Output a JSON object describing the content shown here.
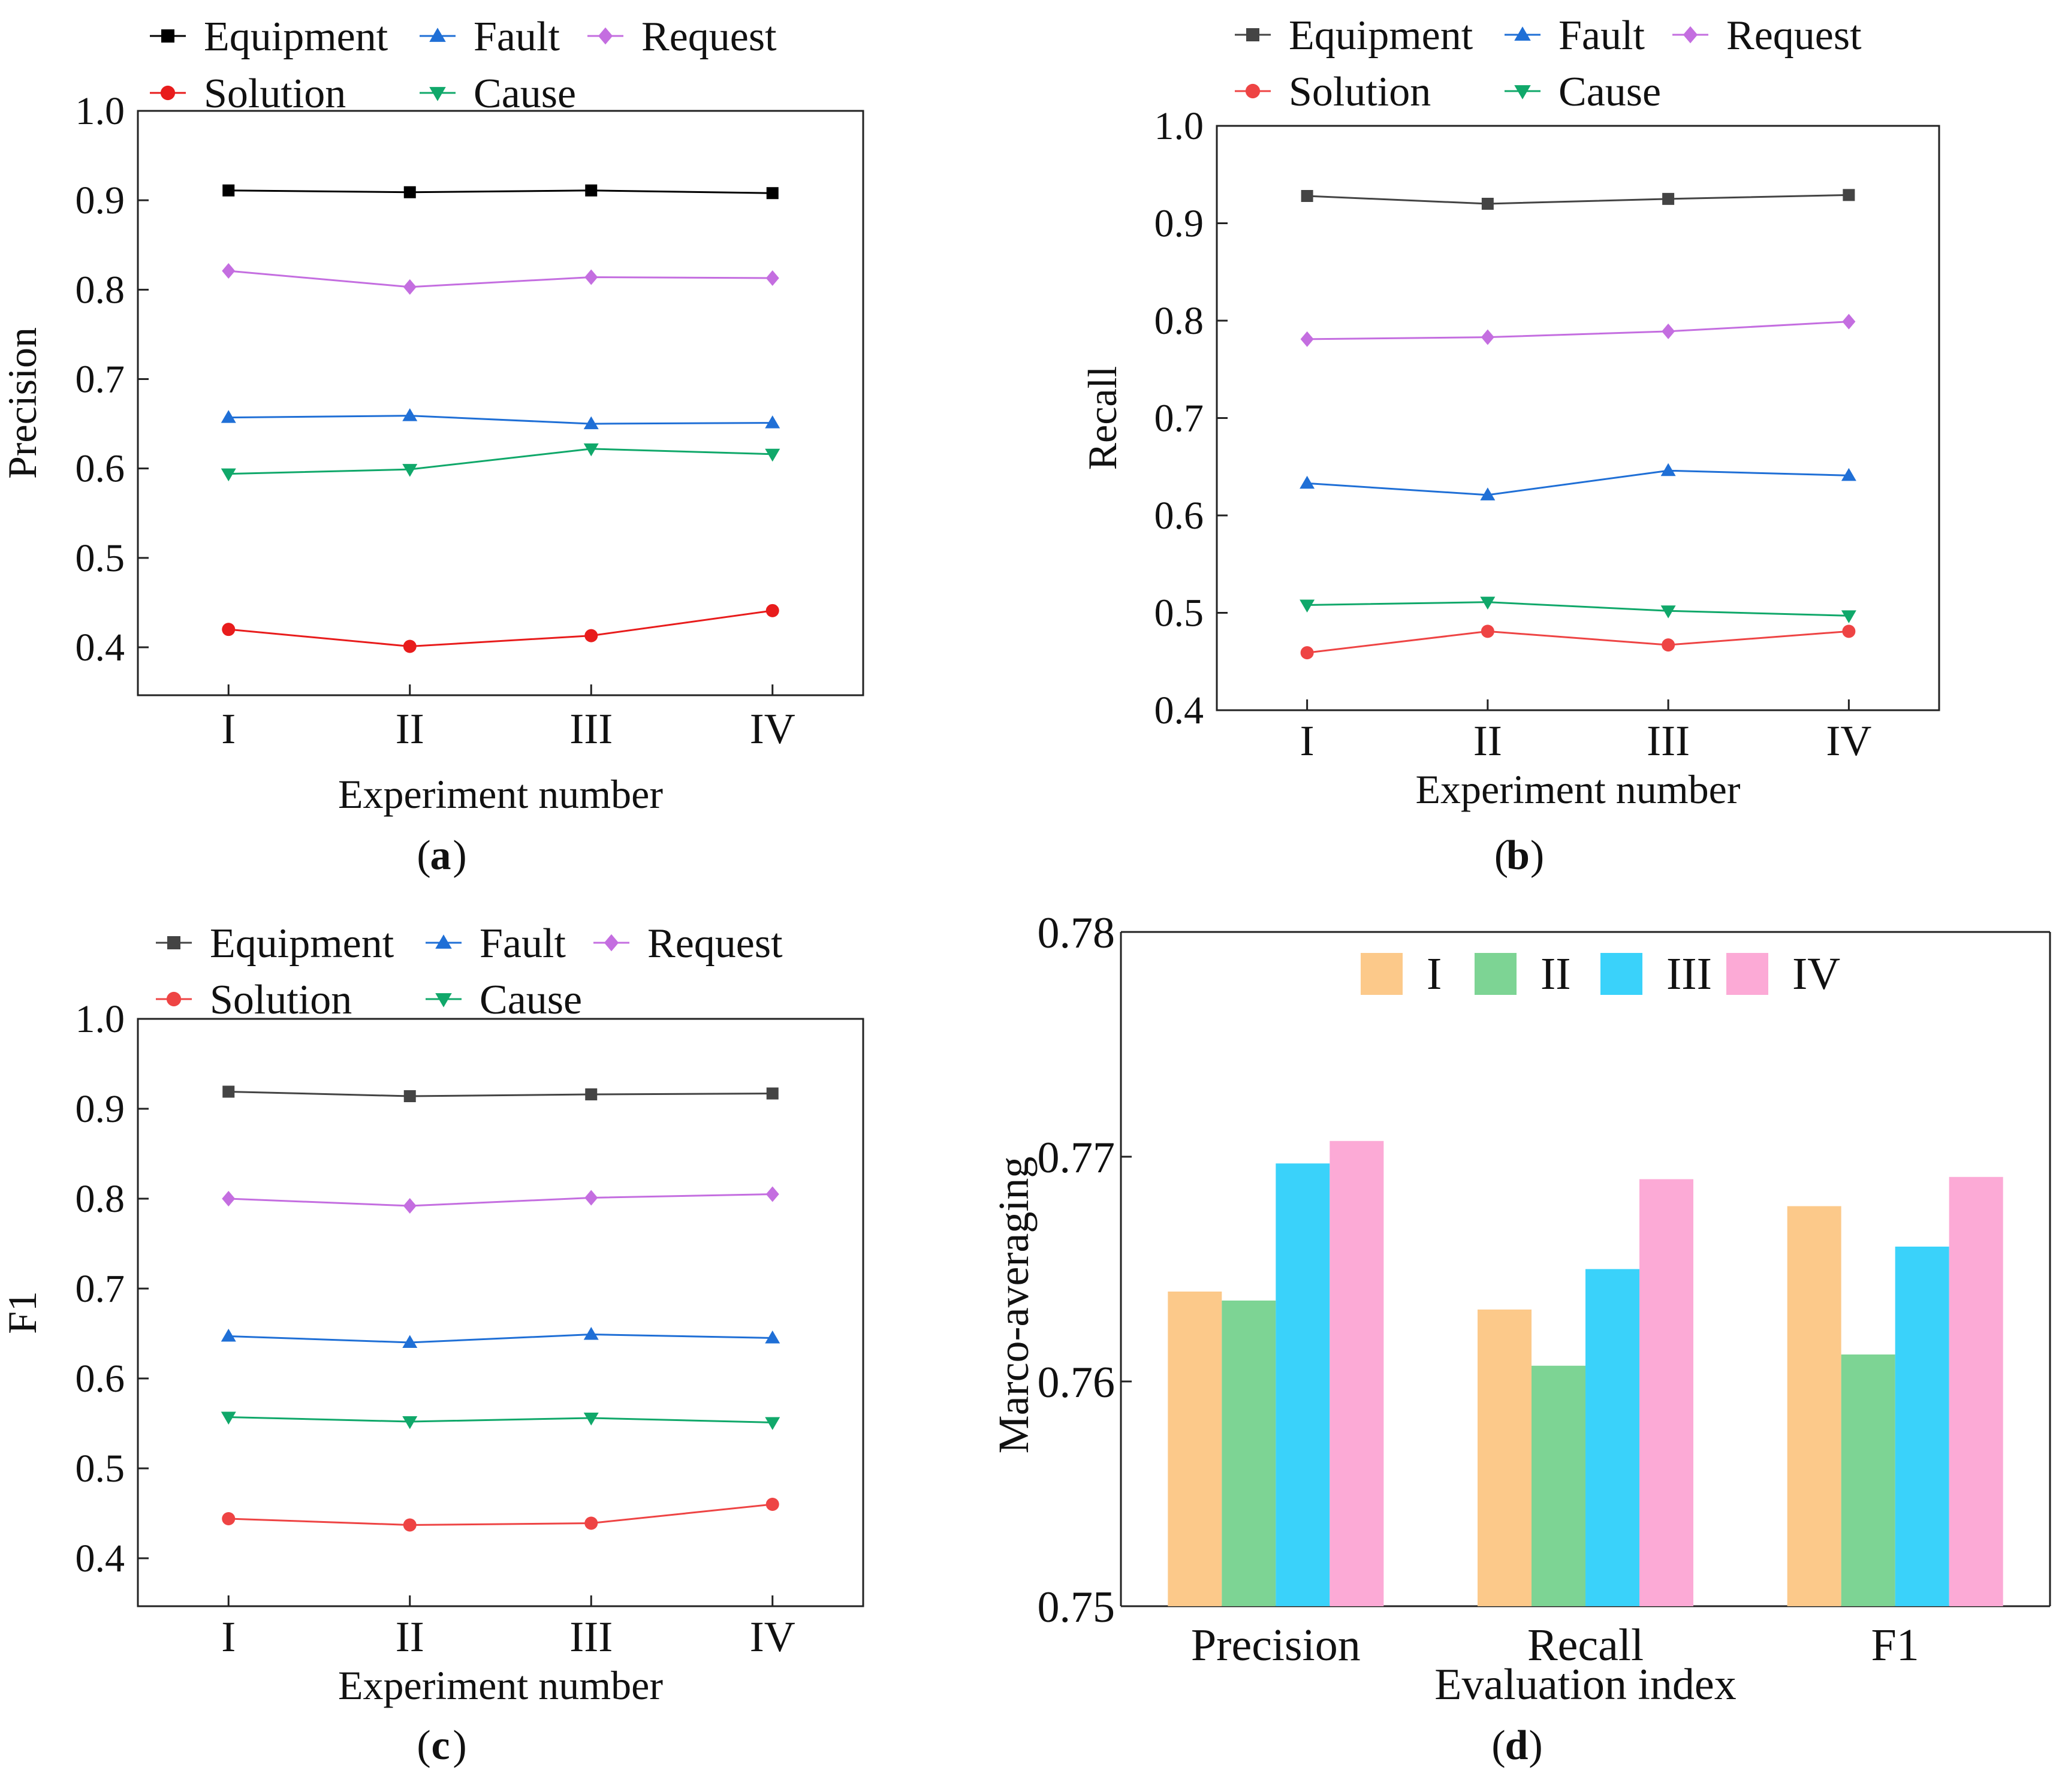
{
  "chart_data": [
    {
      "type": "line",
      "panel_label": "a",
      "xlabel": "Experiment number",
      "ylabel": "Precision",
      "categories": [
        "I",
        "II",
        "III",
        "IV"
      ],
      "ylim": [
        0.35,
        1.0
      ],
      "yticks": [
        "0.4",
        "0.5",
        "0.6",
        "0.7",
        "0.8",
        "0.9",
        "1.0"
      ],
      "legend_position": "top",
      "series": [
        {
          "name": "Equipment",
          "color": "#000000",
          "marker": "square",
          "values": [
            0.911,
            0.909,
            0.911,
            0.908
          ]
        },
        {
          "name": "Fault",
          "color": "#1f6fd6",
          "marker": "triangle-up",
          "values": [
            0.657,
            0.659,
            0.65,
            0.651
          ]
        },
        {
          "name": "Request",
          "color": "#c46ee0",
          "marker": "diamond",
          "values": [
            0.821,
            0.803,
            0.814,
            0.813
          ]
        },
        {
          "name": "Solution",
          "color": "#e81c1c",
          "marker": "circle",
          "values": [
            0.42,
            0.401,
            0.413,
            0.441
          ]
        },
        {
          "name": "Cause",
          "color": "#10a86a",
          "marker": "triangle-down",
          "values": [
            0.594,
            0.599,
            0.622,
            0.616
          ]
        }
      ]
    },
    {
      "type": "line",
      "panel_label": "b",
      "xlabel": "Experiment number",
      "ylabel": "Recall",
      "categories": [
        "I",
        "II",
        "III",
        "IV"
      ],
      "ylim": [
        0.4,
        1.0
      ],
      "yticks": [
        "0.4",
        "0.5",
        "0.6",
        "0.7",
        "0.8",
        "0.9",
        "1.0"
      ],
      "legend_position": "top",
      "series": [
        {
          "name": "Equipment",
          "color": "#444444",
          "marker": "square",
          "values": [
            0.928,
            0.92,
            0.925,
            0.929
          ]
        },
        {
          "name": "Fault",
          "color": "#1f6fd6",
          "marker": "triangle-up",
          "values": [
            0.633,
            0.621,
            0.646,
            0.641
          ]
        },
        {
          "name": "Request",
          "color": "#c46ee0",
          "marker": "diamond",
          "values": [
            0.781,
            0.783,
            0.789,
            0.799
          ]
        },
        {
          "name": "Solution",
          "color": "#ee4444",
          "marker": "circle",
          "values": [
            0.459,
            0.481,
            0.467,
            0.481
          ]
        },
        {
          "name": "Cause",
          "color": "#10a86a",
          "marker": "triangle-down",
          "values": [
            0.508,
            0.511,
            0.502,
            0.497
          ]
        }
      ]
    },
    {
      "type": "line",
      "panel_label": "c",
      "xlabel": "Experiment number",
      "ylabel": "F1",
      "categories": [
        "I",
        "II",
        "III",
        "IV"
      ],
      "ylim": [
        0.35,
        1.0
      ],
      "yticks": [
        "0.4",
        "0.5",
        "0.6",
        "0.7",
        "0.8",
        "0.9",
        "1.0"
      ],
      "legend_position": "top",
      "series": [
        {
          "name": "Equipment",
          "color": "#444444",
          "marker": "square",
          "values": [
            0.919,
            0.914,
            0.916,
            0.917
          ]
        },
        {
          "name": "Fault",
          "color": "#1f6fd6",
          "marker": "triangle-up",
          "values": [
            0.647,
            0.64,
            0.649,
            0.645
          ]
        },
        {
          "name": "Request",
          "color": "#c46ee0",
          "marker": "diamond",
          "values": [
            0.8,
            0.792,
            0.801,
            0.805
          ]
        },
        {
          "name": "Solution",
          "color": "#ee4444",
          "marker": "circle",
          "values": [
            0.444,
            0.437,
            0.439,
            0.46
          ]
        },
        {
          "name": "Cause",
          "color": "#10a86a",
          "marker": "triangle-down",
          "values": [
            0.557,
            0.552,
            0.556,
            0.551
          ]
        }
      ]
    },
    {
      "type": "bar",
      "panel_label": "d",
      "xlabel": "Evaluation index",
      "ylabel": "Marco-averaging",
      "categories": [
        "Precision",
        "Recall",
        "F1"
      ],
      "ylim": [
        0.75,
        0.78
      ],
      "yticks": [
        "0.75",
        "0.76",
        "0.77",
        "0.78"
      ],
      "legend_position": "top",
      "series": [
        {
          "name": "I",
          "color": "#fcc98a",
          "values": [
            0.764,
            0.7632,
            0.7678
          ]
        },
        {
          "name": "II",
          "color": "#7dd494",
          "values": [
            0.7636,
            0.7607,
            0.7612
          ]
        },
        {
          "name": "III",
          "color": "#3ad2fa",
          "values": [
            0.7697,
            0.765,
            0.766
          ]
        },
        {
          "name": "IV",
          "color": "#fcaad6",
          "values": [
            0.7707,
            0.769,
            0.7691
          ]
        }
      ]
    }
  ]
}
